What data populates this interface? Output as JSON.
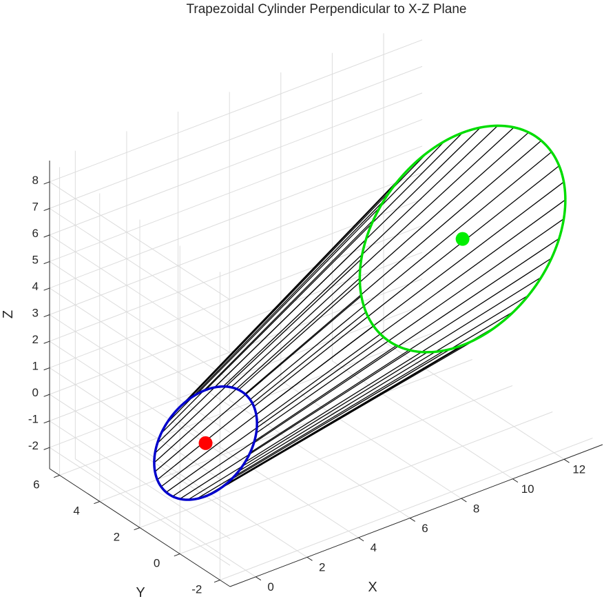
{
  "chart_data": {
    "type": "line3d",
    "title": "Trapezoidal Cylinder Perpendicular to X-Z Plane",
    "xlabel": "X",
    "ylabel": "Y",
    "zlabel": "Z",
    "xlim": [
      -1,
      13.5
    ],
    "ylim": [
      -2.5,
      6.5
    ],
    "zlim": [
      -2.8,
      8.8
    ],
    "x_ticks": [
      0,
      2,
      4,
      6,
      8,
      10,
      12
    ],
    "y_ticks": [
      -2,
      0,
      2,
      4,
      6
    ],
    "z_ticks": [
      -2,
      -1,
      0,
      1,
      2,
      3,
      4,
      5,
      6,
      7,
      8
    ],
    "grid": true,
    "circles": [
      {
        "center": [
          0,
          0,
          1
        ],
        "radius": 2,
        "color": "#0000cc"
      },
      {
        "center": [
          10,
          0,
          5
        ],
        "radius": 4,
        "color": "#00dd00"
      }
    ],
    "center_points": [
      {
        "xyz": [
          0,
          0,
          1
        ],
        "color": "#ff0000"
      },
      {
        "xyz": [
          10,
          0,
          5
        ],
        "color": "#00ee00"
      }
    ],
    "generator_lines": {
      "count": 36,
      "color": "#000000"
    }
  }
}
